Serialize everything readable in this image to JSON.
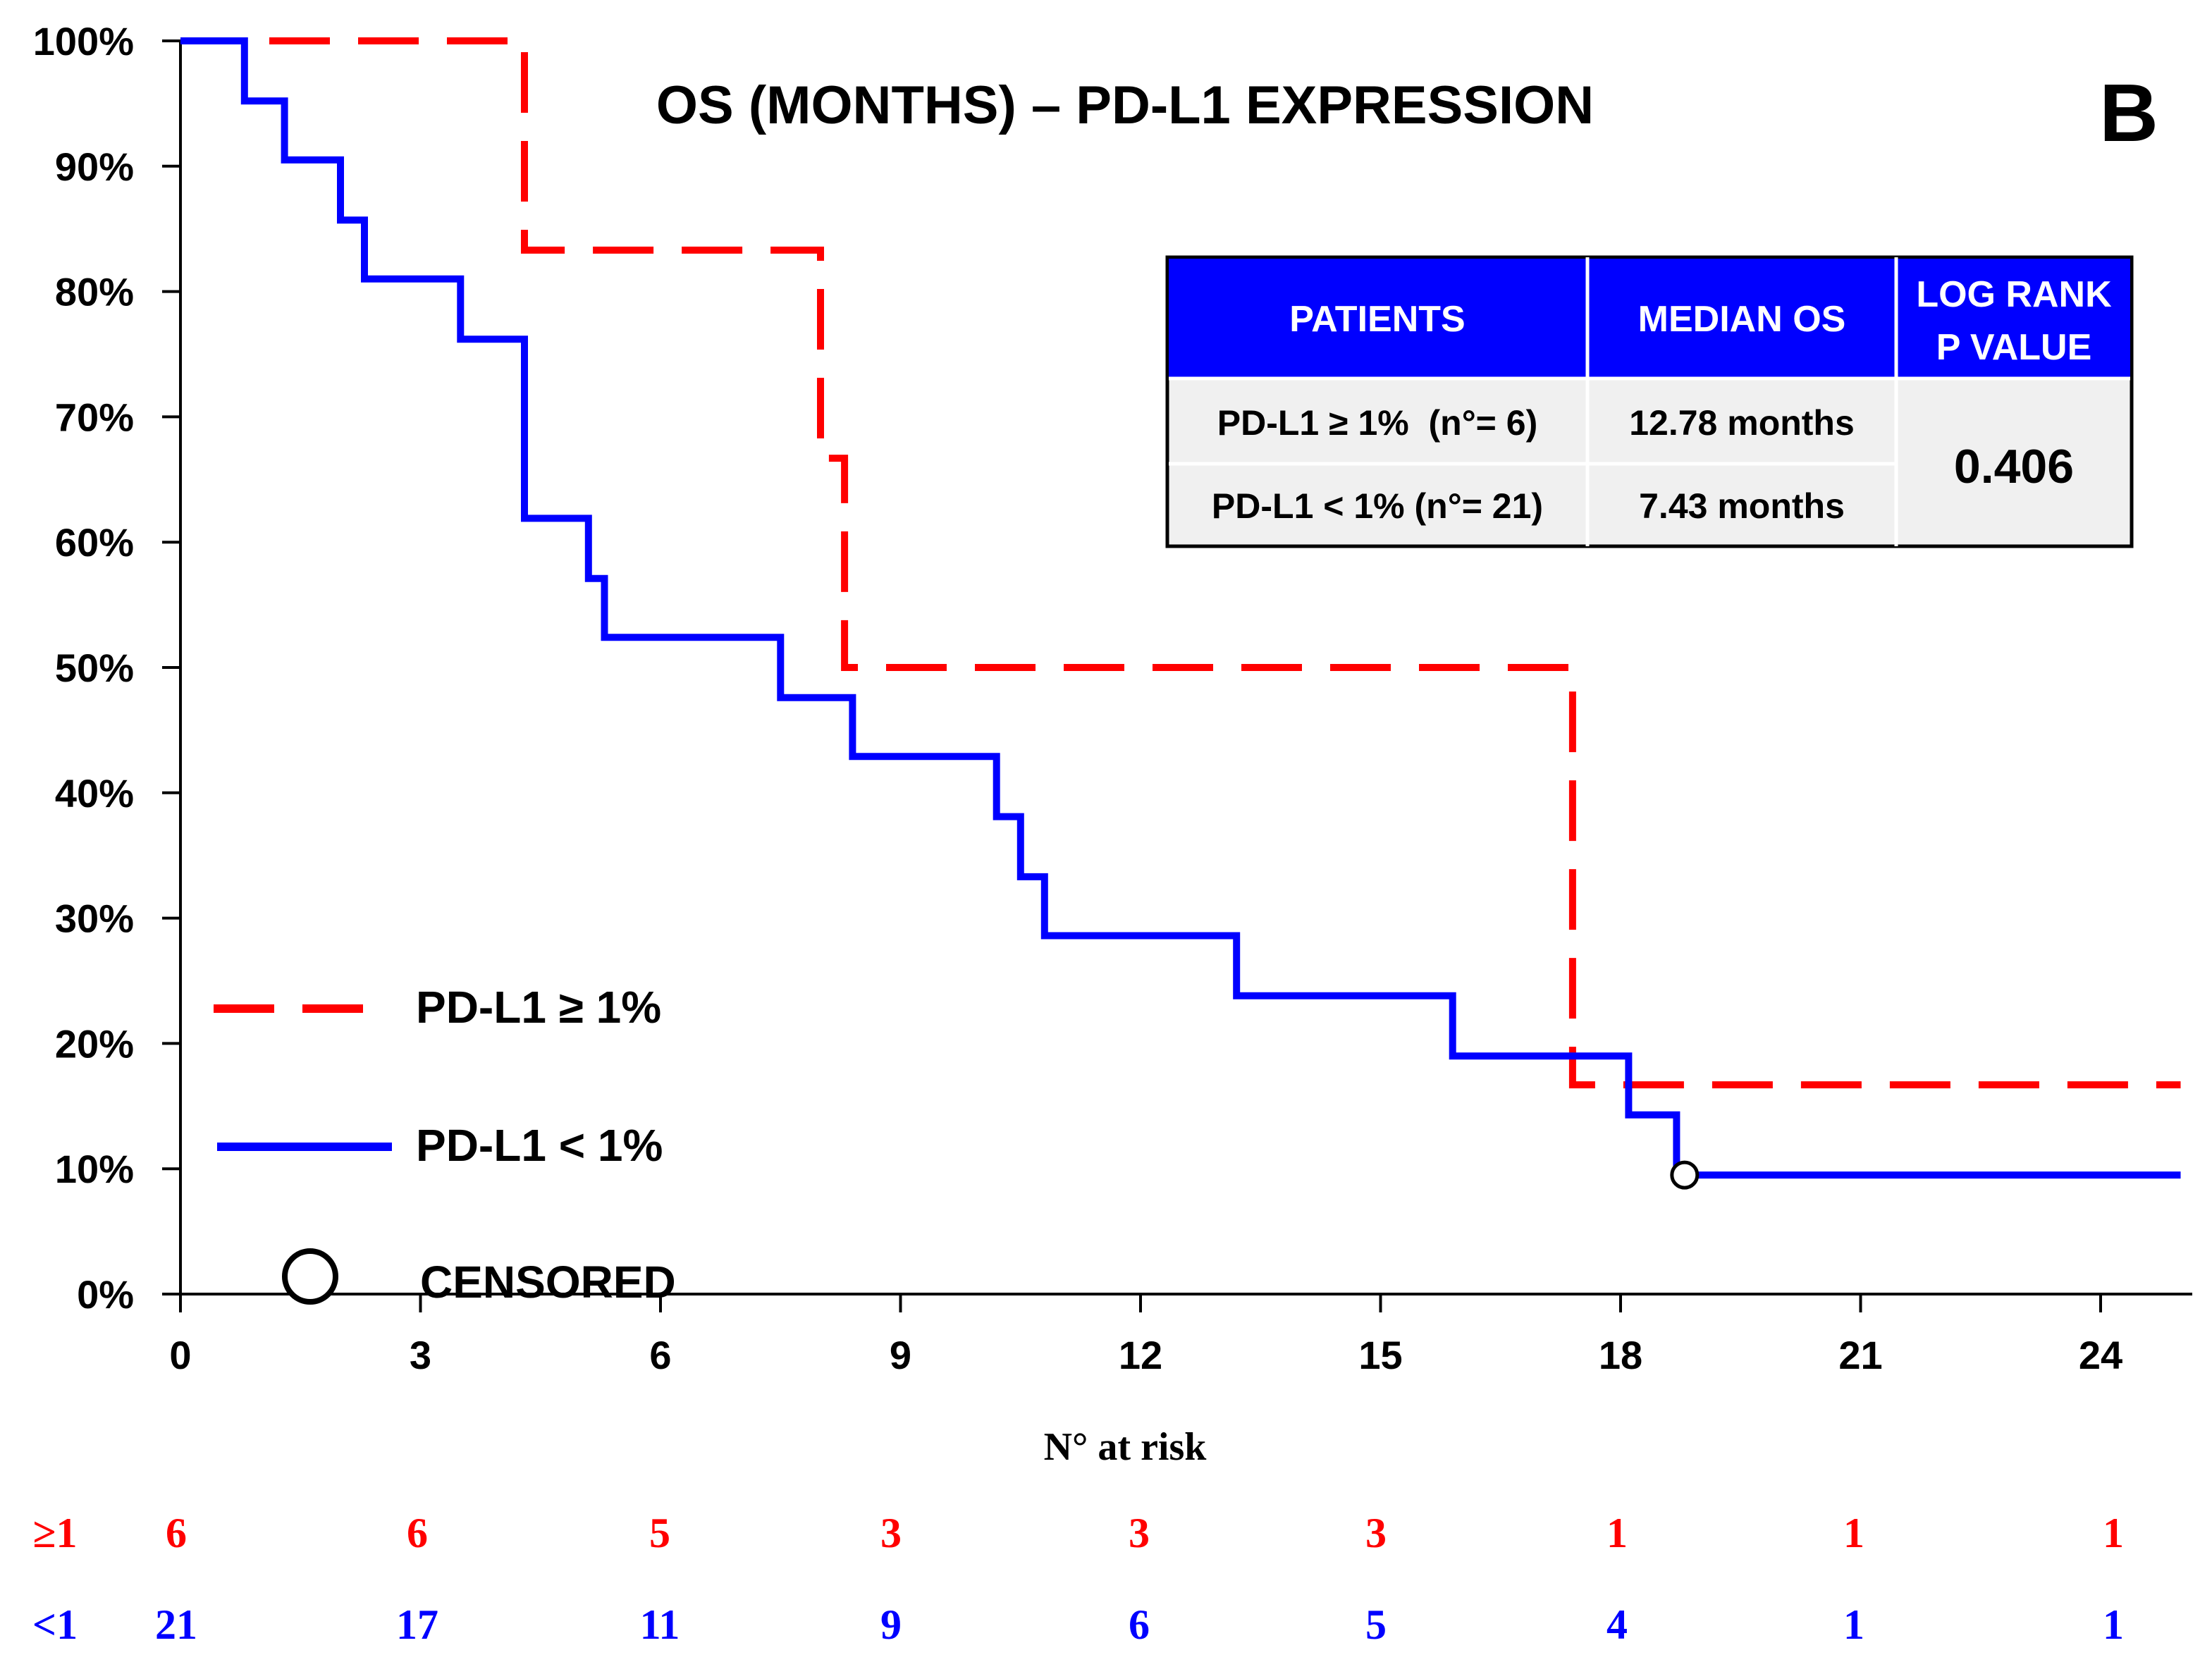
{
  "chart_data": {
    "type": "line",
    "subtype": "kaplan-meier-step",
    "title": "OS (MONTHS) – PD-L1 EXPRESSION",
    "panel_label": "B",
    "xlabel": "",
    "ylabel": "",
    "xlim": [
      0,
      25
    ],
    "ylim": [
      0,
      100
    ],
    "x_ticks": [
      "0",
      "3",
      "6",
      "9",
      "12",
      "15",
      "18",
      "21",
      "24"
    ],
    "y_ticks": [
      "0%",
      "10%",
      "20%",
      "30%",
      "40%",
      "50%",
      "60%",
      "70%",
      "80%",
      "90%",
      "100%"
    ],
    "series": [
      {
        "name": "PD-L1 ≥ 1%",
        "color": "#ff0000",
        "style": "dashed",
        "x": [
          0,
          4.3,
          4.3,
          8.0,
          8.0,
          8.3,
          8.3,
          17.4,
          17.4,
          25
        ],
        "y": [
          100,
          100,
          83.3,
          83.3,
          66.7,
          66.7,
          50,
          50,
          16.7,
          16.7
        ]
      },
      {
        "name": "PD-L1 < 1%",
        "color": "#0000ff",
        "style": "solid",
        "x": [
          0,
          0.8,
          0.8,
          1.3,
          1.3,
          2.0,
          2.0,
          2.3,
          2.3,
          3.5,
          3.5,
          4.3,
          4.3,
          5.1,
          5.1,
          5.3,
          5.3,
          7.5,
          7.5,
          8.4,
          8.4,
          10.2,
          10.2,
          10.5,
          10.5,
          10.8,
          10.8,
          13.2,
          13.2,
          15.9,
          15.9,
          18.1,
          18.1,
          18.7,
          18.7,
          25
        ],
        "y": [
          100,
          100,
          95.2,
          95.2,
          90.5,
          90.5,
          85.7,
          85.7,
          81.0,
          81.0,
          76.2,
          76.2,
          61.9,
          61.9,
          57.1,
          57.1,
          52.4,
          52.4,
          47.6,
          47.6,
          42.9,
          42.9,
          38.1,
          38.1,
          33.3,
          33.3,
          28.6,
          28.6,
          23.8,
          23.8,
          19.0,
          19.0,
          14.3,
          14.3,
          9.5,
          9.5
        ]
      }
    ],
    "censored_points": [
      {
        "series": "PD-L1 < 1%",
        "x": 18.8,
        "y": 9.5
      }
    ],
    "legend": {
      "placement": "bottom-left",
      "entries": [
        "PD-L1 ≥ 1%",
        "PD-L1 < 1%",
        "CENSORED"
      ]
    },
    "summary_table": {
      "headers": [
        "PATIENTS",
        "MEDIAN OS",
        "LOG RANK",
        "P VALUE"
      ],
      "rows": [
        {
          "patients": "PD-L1 ≥ 1%  (n°= 6)",
          "median_os": "12.78 months"
        },
        {
          "patients": "PD-L1 < 1% (n°= 21)",
          "median_os": "7.43 months"
        }
      ],
      "p_value": "0.406"
    },
    "at_risk": {
      "title": "N° at risk",
      "rows": [
        {
          "label": "≥1",
          "color": "#ff0000",
          "values": [
            "6",
            "6",
            "5",
            "3",
            "3",
            "3",
            "1",
            "1",
            "1"
          ]
        },
        {
          "label": "<1",
          "color": "#0000ff",
          "values": [
            "21",
            "17",
            "11",
            "9",
            "6",
            "5",
            "4",
            "1",
            "1"
          ]
        }
      ]
    }
  },
  "colors": {
    "red": "#ff0000",
    "blue": "#0000ff",
    "table_header": "#0000ff",
    "table_body": "#f0f0f0"
  }
}
